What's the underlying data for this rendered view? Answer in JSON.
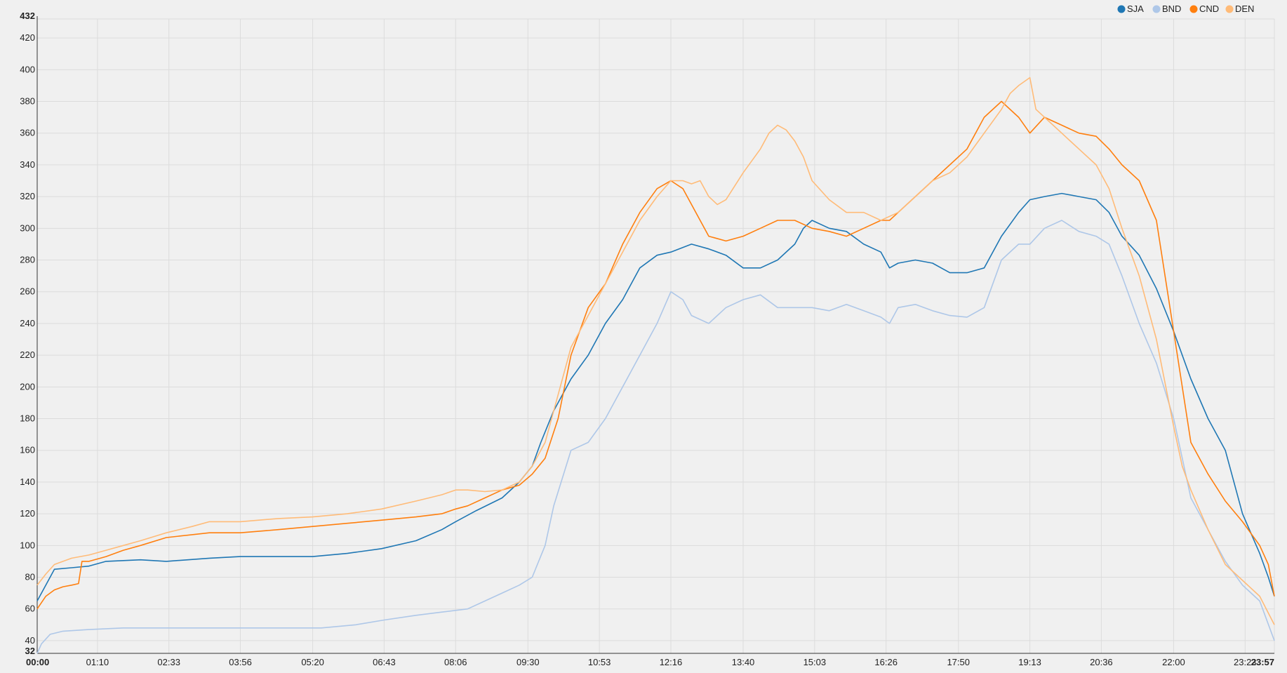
{
  "chart_data": {
    "type": "line",
    "title": "",
    "xlabel": "",
    "ylabel": "",
    "x_unit": "minutes since 00:00",
    "xlim": [
      0,
      1437
    ],
    "ylim": [
      32,
      432
    ],
    "grid": true,
    "legend_position": "top-right",
    "x_ticks": [
      {
        "value": 0,
        "label": "00:00",
        "bold": true
      },
      {
        "value": 70,
        "label": "01:10"
      },
      {
        "value": 153,
        "label": "02:33"
      },
      {
        "value": 236,
        "label": "03:56"
      },
      {
        "value": 320,
        "label": "05:20"
      },
      {
        "value": 403,
        "label": "06:43"
      },
      {
        "value": 486,
        "label": "08:06"
      },
      {
        "value": 570,
        "label": "09:30"
      },
      {
        "value": 653,
        "label": "10:53"
      },
      {
        "value": 736,
        "label": "12:16"
      },
      {
        "value": 820,
        "label": "13:40"
      },
      {
        "value": 903,
        "label": "15:03"
      },
      {
        "value": 986,
        "label": "16:26"
      },
      {
        "value": 1070,
        "label": "17:50"
      },
      {
        "value": 1153,
        "label": "19:13"
      },
      {
        "value": 1236,
        "label": "20:36"
      },
      {
        "value": 1320,
        "label": "22:00"
      },
      {
        "value": 1403,
        "label": "23:23"
      },
      {
        "value": 1437,
        "label": "23:57",
        "bold": true
      }
    ],
    "y_ticks": [
      {
        "value": 32,
        "label": "32",
        "bold": true
      },
      {
        "value": 40,
        "label": "40"
      },
      {
        "value": 60,
        "label": "60"
      },
      {
        "value": 80,
        "label": "80"
      },
      {
        "value": 100,
        "label": "100"
      },
      {
        "value": 120,
        "label": "120"
      },
      {
        "value": 140,
        "label": "140"
      },
      {
        "value": 160,
        "label": "160"
      },
      {
        "value": 180,
        "label": "180"
      },
      {
        "value": 200,
        "label": "200"
      },
      {
        "value": 220,
        "label": "220"
      },
      {
        "value": 240,
        "label": "240"
      },
      {
        "value": 260,
        "label": "260"
      },
      {
        "value": 280,
        "label": "280"
      },
      {
        "value": 300,
        "label": "300"
      },
      {
        "value": 320,
        "label": "320"
      },
      {
        "value": 340,
        "label": "340"
      },
      {
        "value": 360,
        "label": "360"
      },
      {
        "value": 380,
        "label": "380"
      },
      {
        "value": 400,
        "label": "400"
      },
      {
        "value": 420,
        "label": "420"
      },
      {
        "value": 432,
        "label": "432",
        "bold": true
      }
    ],
    "series": [
      {
        "name": "SJA",
        "color": "#1f77b4",
        "x": [
          0,
          10,
          20,
          40,
          60,
          80,
          120,
          150,
          200,
          236,
          280,
          320,
          360,
          400,
          440,
          470,
          486,
          510,
          540,
          560,
          575,
          585,
          600,
          620,
          640,
          660,
          680,
          700,
          720,
          736,
          760,
          780,
          800,
          820,
          840,
          860,
          880,
          890,
          900,
          920,
          940,
          960,
          980,
          990,
          1000,
          1020,
          1040,
          1060,
          1080,
          1100,
          1120,
          1140,
          1153,
          1170,
          1190,
          1210,
          1230,
          1245,
          1260,
          1280,
          1300,
          1320,
          1340,
          1360,
          1380,
          1400,
          1420,
          1430,
          1437
        ],
        "y": [
          65,
          75,
          85,
          86,
          87,
          90,
          91,
          90,
          92,
          93,
          93,
          93,
          95,
          98,
          103,
          110,
          115,
          122,
          130,
          140,
          150,
          165,
          185,
          205,
          220,
          240,
          255,
          275,
          283,
          285,
          290,
          287,
          283,
          275,
          275,
          280,
          290,
          300,
          305,
          300,
          298,
          290,
          285,
          275,
          278,
          280,
          278,
          272,
          272,
          275,
          295,
          310,
          318,
          320,
          322,
          320,
          318,
          310,
          295,
          283,
          262,
          235,
          205,
          180,
          160,
          120,
          95,
          80,
          68
        ]
      },
      {
        "name": "BND",
        "color": "#aec7e8",
        "x": [
          0,
          5,
          15,
          30,
          60,
          100,
          150,
          200,
          236,
          300,
          330,
          370,
          403,
          440,
          470,
          500,
          520,
          540,
          560,
          575,
          590,
          600,
          620,
          640,
          660,
          680,
          700,
          720,
          736,
          750,
          760,
          780,
          800,
          820,
          840,
          860,
          880,
          900,
          920,
          940,
          960,
          980,
          990,
          1000,
          1020,
          1040,
          1060,
          1080,
          1100,
          1120,
          1140,
          1153,
          1170,
          1190,
          1210,
          1230,
          1245,
          1260,
          1280,
          1300,
          1320,
          1340,
          1360,
          1380,
          1400,
          1420,
          1437
        ],
        "y": [
          32,
          38,
          44,
          46,
          47,
          48,
          48,
          48,
          48,
          48,
          48,
          50,
          53,
          56,
          58,
          60,
          65,
          70,
          75,
          80,
          100,
          125,
          160,
          165,
          180,
          200,
          220,
          240,
          260,
          255,
          245,
          240,
          250,
          255,
          258,
          250,
          250,
          250,
          248,
          252,
          248,
          244,
          240,
          250,
          252,
          248,
          245,
          244,
          250,
          280,
          290,
          290,
          300,
          305,
          298,
          295,
          290,
          270,
          240,
          215,
          180,
          130,
          110,
          90,
          75,
          65,
          40
        ]
      },
      {
        "name": "CND",
        "color": "#ff7f0e",
        "x": [
          0,
          10,
          20,
          30,
          40,
          48,
          52,
          60,
          80,
          100,
          120,
          150,
          200,
          236,
          280,
          320,
          360,
          400,
          440,
          470,
          486,
          500,
          520,
          540,
          560,
          575,
          590,
          605,
          620,
          640,
          660,
          680,
          700,
          720,
          736,
          750,
          760,
          770,
          780,
          800,
          820,
          840,
          860,
          880,
          900,
          920,
          940,
          960,
          980,
          990,
          1000,
          1020,
          1040,
          1060,
          1080,
          1100,
          1120,
          1140,
          1153,
          1170,
          1190,
          1210,
          1230,
          1245,
          1260,
          1280,
          1300,
          1320,
          1340,
          1360,
          1380,
          1400,
          1420,
          1430,
          1437
        ],
        "y": [
          60,
          68,
          72,
          74,
          75,
          76,
          90,
          90,
          93,
          97,
          100,
          105,
          108,
          108,
          110,
          112,
          114,
          116,
          118,
          120,
          123,
          125,
          130,
          135,
          138,
          145,
          155,
          180,
          220,
          250,
          265,
          290,
          310,
          325,
          330,
          325,
          315,
          305,
          295,
          292,
          295,
          300,
          305,
          305,
          300,
          298,
          295,
          300,
          305,
          305,
          310,
          320,
          330,
          340,
          350,
          370,
          380,
          370,
          360,
          370,
          365,
          360,
          358,
          350,
          340,
          330,
          305,
          235,
          165,
          145,
          128,
          115,
          100,
          88,
          68
        ]
      },
      {
        "name": "DEN",
        "color": "#ffbb78",
        "x": [
          0,
          10,
          20,
          30,
          40,
          60,
          80,
          100,
          120,
          150,
          180,
          200,
          236,
          280,
          320,
          360,
          400,
          440,
          470,
          486,
          500,
          520,
          540,
          560,
          575,
          590,
          605,
          620,
          640,
          660,
          680,
          700,
          720,
          736,
          750,
          760,
          770,
          780,
          790,
          800,
          820,
          840,
          850,
          860,
          870,
          880,
          890,
          900,
          920,
          940,
          960,
          980,
          1000,
          1020,
          1040,
          1060,
          1080,
          1100,
          1120,
          1130,
          1140,
          1153,
          1160,
          1170,
          1180,
          1190,
          1200,
          1210,
          1230,
          1245,
          1260,
          1280,
          1300,
          1320,
          1330,
          1340,
          1360,
          1380,
          1400,
          1420,
          1437
        ],
        "y": [
          75,
          82,
          88,
          90,
          92,
          94,
          97,
          100,
          103,
          108,
          112,
          115,
          115,
          117,
          118,
          120,
          123,
          128,
          132,
          135,
          135,
          134,
          135,
          140,
          150,
          165,
          195,
          225,
          245,
          265,
          285,
          305,
          320,
          330,
          330,
          328,
          330,
          320,
          315,
          318,
          335,
          350,
          360,
          365,
          362,
          355,
          345,
          330,
          318,
          310,
          310,
          305,
          310,
          320,
          330,
          335,
          345,
          360,
          375,
          385,
          390,
          395,
          375,
          370,
          365,
          360,
          355,
          350,
          340,
          325,
          300,
          270,
          230,
          175,
          150,
          135,
          110,
          88,
          78,
          68,
          50
        ]
      }
    ]
  }
}
